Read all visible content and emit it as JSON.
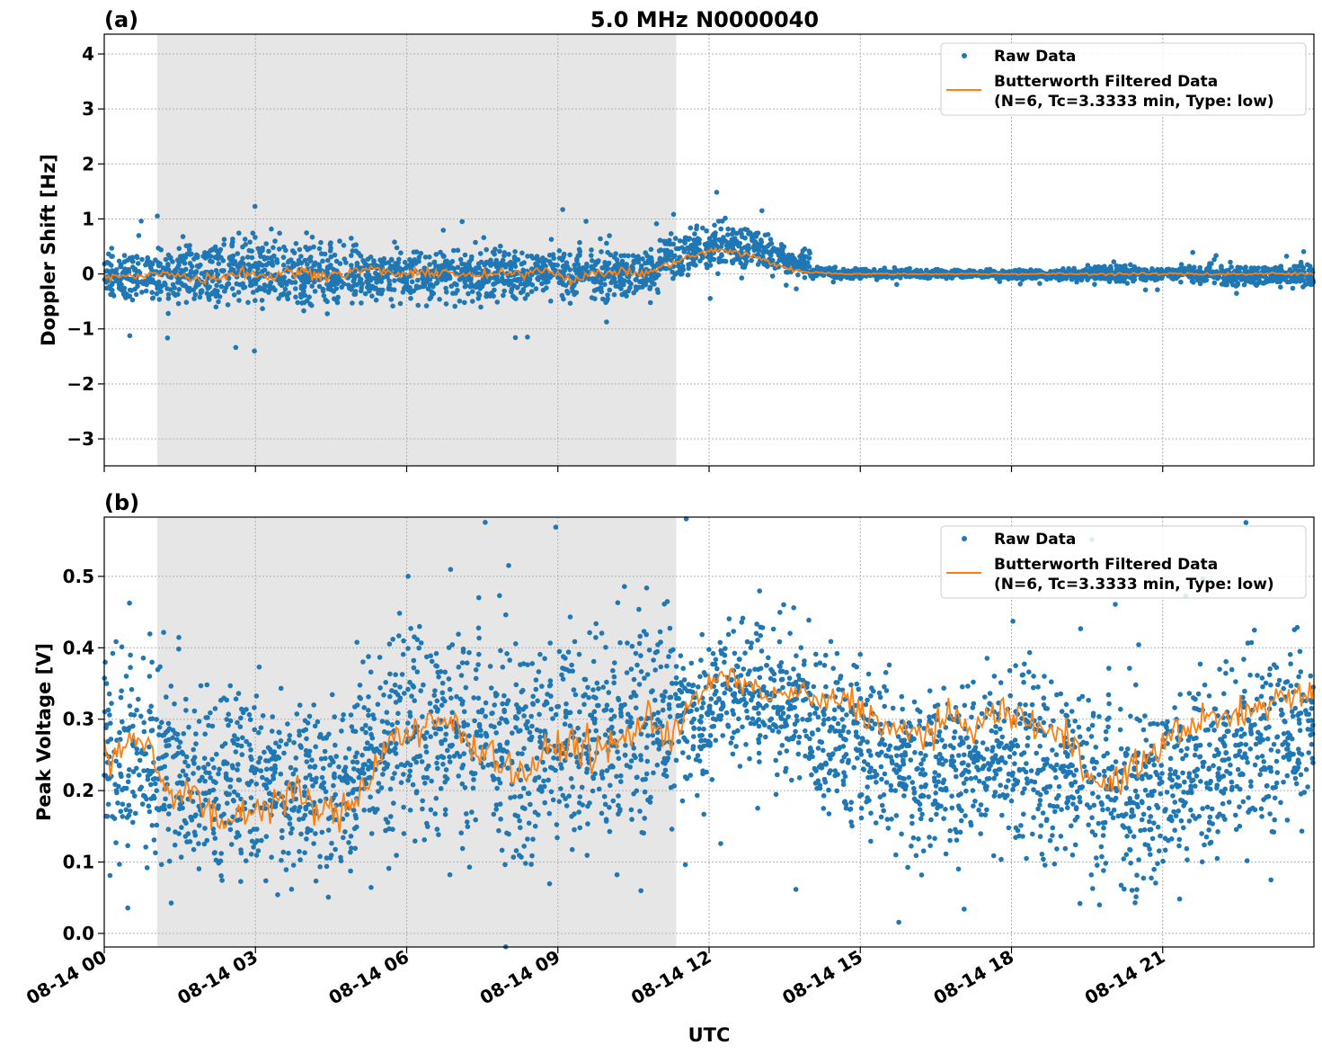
{
  "chart_data": [
    {
      "type": "scatter",
      "panel_label": "(a)",
      "title": "5.0 MHz N0000040",
      "xlabel": "",
      "ylabel": "Doppler Shift [Hz]",
      "xlim_hours": [
        0,
        24
      ],
      "ylim": [
        -3.49,
        4.36
      ],
      "yticks": [
        4,
        3,
        2,
        1,
        0,
        -1,
        -2,
        -3
      ],
      "ytick_labels": [
        "4",
        "3",
        "2",
        "1",
        "0",
        "−1",
        "−2",
        "−3"
      ],
      "grid": true,
      "legend_placement": "top-right",
      "shaded_interval_hours": [
        1.05,
        11.35
      ],
      "shade_color": "#e6e6e6",
      "series": [
        {
          "name": "Raw Data",
          "kind": "points",
          "color": "#1f77b4",
          "bin_hours": 0.5,
          "low": [
            -0.6,
            -0.6,
            -0.65,
            -0.7,
            -0.8,
            -0.8,
            -0.8,
            -0.8,
            -0.8,
            -0.7,
            -0.6,
            -0.6,
            -0.6,
            -0.6,
            -0.55,
            -0.6,
            -0.6,
            -0.5,
            -0.6,
            -0.6,
            -0.5,
            -0.55,
            -0.2,
            -0.1,
            0.0,
            0.0,
            -0.1,
            -0.1,
            -0.1,
            -0.1,
            -0.1,
            -0.1,
            -0.1,
            -0.1,
            -0.1,
            -0.1,
            -0.12,
            -0.12,
            -0.15,
            -0.2,
            -0.2,
            -0.15,
            -0.15,
            -0.2,
            -0.25,
            -0.25,
            -0.25,
            -0.3
          ],
          "high": [
            0.5,
            0.5,
            0.6,
            0.7,
            0.8,
            0.8,
            0.8,
            0.8,
            0.8,
            0.7,
            0.6,
            0.6,
            0.6,
            0.6,
            0.55,
            0.6,
            0.6,
            0.55,
            0.6,
            0.6,
            0.55,
            0.6,
            0.8,
            1.0,
            1.0,
            1.0,
            0.8,
            0.5,
            0.15,
            0.1,
            0.1,
            0.1,
            0.1,
            0.1,
            0.1,
            0.1,
            0.12,
            0.12,
            0.15,
            0.2,
            0.2,
            0.15,
            0.15,
            0.2,
            0.2,
            0.2,
            0.2,
            0.25
          ]
        },
        {
          "name": "Butterworth Filtered Data\n(N=6, Tc=3.3333 min, Type: low)",
          "kind": "line",
          "color": "#ff7f0e",
          "bin_hours": 0.5,
          "values": [
            -0.05,
            -0.05,
            0.05,
            -0.1,
            -0.05,
            0.05,
            -0.05,
            0.05,
            0.0,
            0.0,
            0.1,
            0.0,
            0.0,
            0.05,
            -0.05,
            0.0,
            0.0,
            0.1,
            -0.1,
            0.0,
            0.05,
            0.0,
            0.2,
            0.35,
            0.45,
            0.35,
            0.2,
            0.05,
            0.02,
            0.0,
            0.0,
            0.0,
            0.0,
            0.0,
            0.0,
            0.0,
            0.0,
            0.0,
            0.0,
            0.0,
            0.0,
            0.0,
            0.0,
            0.0,
            0.0,
            0.0,
            0.0,
            0.0
          ]
        }
      ]
    },
    {
      "type": "scatter",
      "panel_label": "(b)",
      "xlabel": "UTC",
      "ylabel": "Peak Voltage [V]",
      "xlim_hours": [
        0,
        24
      ],
      "ylim": [
        -0.019,
        0.583
      ],
      "yticks": [
        0.5,
        0.4,
        0.3,
        0.2,
        0.1,
        0.0
      ],
      "ytick_labels": [
        "0.5",
        "0.4",
        "0.3",
        "0.2",
        "0.1",
        "0.0"
      ],
      "xticks_hours": [
        0,
        3,
        6,
        9,
        12,
        15,
        18,
        21
      ],
      "xtick_labels": [
        "08-14 00",
        "08-14 03",
        "08-14 06",
        "08-14 09",
        "08-14 12",
        "08-14 15",
        "08-14 18",
        "08-14 21"
      ],
      "grid": true,
      "legend_placement": "top-right",
      "shaded_interval_hours": [
        1.05,
        11.35
      ],
      "shade_color": "#e6e6e6",
      "series": [
        {
          "name": "Raw Data",
          "kind": "points",
          "color": "#1f77b4",
          "bin_hours": 0.5,
          "low": [
            0.06,
            0.06,
            0.05,
            0.04,
            0.04,
            0.04,
            0.04,
            0.04,
            0.04,
            0.04,
            0.06,
            0.08,
            0.08,
            0.08,
            0.07,
            0.07,
            0.06,
            0.06,
            0.07,
            0.08,
            0.08,
            0.09,
            0.12,
            0.15,
            0.2,
            0.22,
            0.2,
            0.18,
            0.12,
            0.12,
            0.1,
            0.08,
            0.06,
            0.08,
            0.1,
            0.1,
            0.08,
            0.05,
            0.04,
            0.02,
            0.02,
            0.04,
            0.04,
            0.06,
            0.08,
            0.1,
            0.1,
            0.12
          ],
          "high": [
            0.42,
            0.42,
            0.4,
            0.38,
            0.38,
            0.4,
            0.4,
            0.38,
            0.38,
            0.4,
            0.45,
            0.48,
            0.48,
            0.48,
            0.48,
            0.46,
            0.46,
            0.46,
            0.47,
            0.48,
            0.48,
            0.5,
            0.5,
            0.46,
            0.46,
            0.46,
            0.45,
            0.44,
            0.44,
            0.42,
            0.42,
            0.4,
            0.4,
            0.4,
            0.4,
            0.42,
            0.42,
            0.42,
            0.4,
            0.38,
            0.36,
            0.36,
            0.38,
            0.4,
            0.42,
            0.42,
            0.44,
            0.46
          ]
        },
        {
          "name": "Butterworth Filtered Data\n(N=6, Tc=3.3333 min, Type: low)",
          "kind": "line",
          "color": "#ff7f0e",
          "bin_hours": 0.5,
          "values": [
            0.25,
            0.28,
            0.2,
            0.2,
            0.15,
            0.17,
            0.18,
            0.2,
            0.17,
            0.17,
            0.22,
            0.28,
            0.28,
            0.3,
            0.27,
            0.25,
            0.22,
            0.25,
            0.27,
            0.25,
            0.27,
            0.3,
            0.28,
            0.33,
            0.36,
            0.35,
            0.33,
            0.34,
            0.32,
            0.33,
            0.3,
            0.28,
            0.28,
            0.3,
            0.29,
            0.31,
            0.3,
            0.28,
            0.27,
            0.2,
            0.22,
            0.25,
            0.28,
            0.3,
            0.3,
            0.31,
            0.33,
            0.34
          ]
        }
      ]
    }
  ],
  "legend": {
    "raw_label": "Raw Data",
    "filt_label_line1": "Butterworth Filtered Data",
    "filt_label_line2": "(N=6, Tc=3.3333 min, Type: low)"
  }
}
